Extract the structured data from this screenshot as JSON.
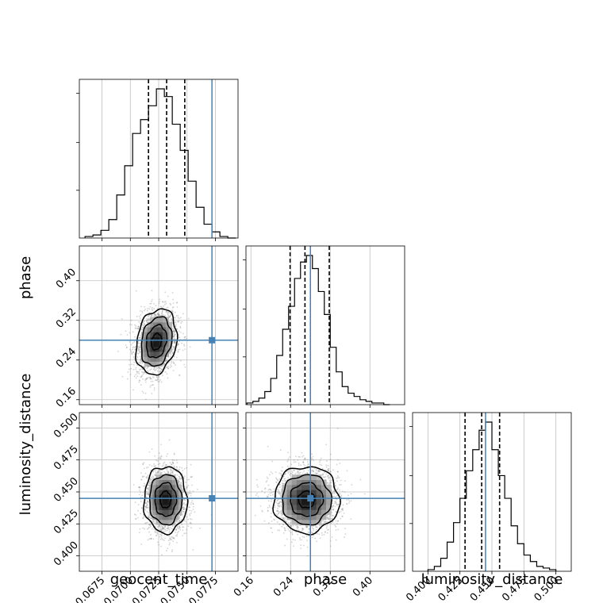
{
  "colors": {
    "truth": "#4682b4",
    "hist": "#000000",
    "grid": "#c0c0c0",
    "points": "#808080"
  },
  "chart_data": {
    "type": "corner",
    "parameters": [
      "geocent_time",
      "phase",
      "luminosity_distance"
    ],
    "truths": {
      "geocent_time": 0.0772,
      "phase": 0.28,
      "luminosity_distance": 0.445
    },
    "grid": true,
    "axes": {
      "geocent_time": {
        "label": "geocent_time",
        "range": [
          0.0655,
          0.0795
        ],
        "ticks": [
          0.0675,
          0.07,
          0.0725,
          0.075,
          0.0775
        ],
        "tick_labels": [
          "0.0675",
          "0.0700",
          "0.0725",
          "0.0750",
          "0.0775"
        ]
      },
      "phase": {
        "label": "phase",
        "range": [
          0.15,
          0.47
        ],
        "ticks": [
          0.16,
          0.24,
          0.32,
          0.4
        ],
        "tick_labels": [
          "0.16",
          "0.24",
          "0.32",
          "0.40"
        ]
      },
      "luminosity_distance": {
        "label": "luminosity_distance",
        "range": [
          0.388,
          0.512
        ],
        "ticks": [
          0.4,
          0.425,
          0.45,
          0.475,
          0.5
        ],
        "tick_labels": [
          "0.400",
          "0.425",
          "0.450",
          "0.475",
          "0.500"
        ]
      }
    },
    "histograms": {
      "geocent_time": {
        "edges": [
          0.066,
          0.0667,
          0.0674,
          0.0681,
          0.0688,
          0.0695,
          0.0702,
          0.0709,
          0.0716,
          0.0723,
          0.073,
          0.0737,
          0.0744,
          0.0751,
          0.0758,
          0.0765,
          0.0772,
          0.0779,
          0.0786,
          0.0793
        ],
        "counts": [
          1,
          2,
          5,
          12,
          28,
          47,
          68,
          77,
          86,
          97,
          92,
          74,
          57,
          37,
          20,
          9,
          4,
          1,
          0
        ],
        "quantiles": [
          0.0716,
          0.0732,
          0.0748
        ]
      },
      "phase": {
        "edges": [
          0.152,
          0.164,
          0.176,
          0.188,
          0.2,
          0.212,
          0.224,
          0.236,
          0.248,
          0.26,
          0.272,
          0.284,
          0.296,
          0.308,
          0.32,
          0.332,
          0.344,
          0.356,
          0.368,
          0.38,
          0.392,
          0.404,
          0.416,
          0.428,
          0.44
        ],
        "counts": [
          1,
          2,
          4,
          8,
          16,
          30,
          46,
          60,
          77,
          87,
          91,
          83,
          69,
          55,
          35,
          20,
          11,
          7,
          5,
          3,
          2,
          1,
          1,
          0
        ],
        "quantiles": [
          0.239,
          0.269,
          0.318
        ]
      },
      "luminosity_distance": {
        "edges": [
          0.4,
          0.405,
          0.41,
          0.415,
          0.42,
          0.425,
          0.43,
          0.435,
          0.44,
          0.445,
          0.45,
          0.455,
          0.46,
          0.465,
          0.47,
          0.475,
          0.48,
          0.485,
          0.49,
          0.495,
          0.5
        ],
        "counts": [
          1,
          3,
          8,
          18,
          30,
          45,
          62,
          75,
          87,
          92,
          75,
          59,
          45,
          28,
          17,
          10,
          6,
          3,
          2,
          1
        ],
        "quantiles": [
          0.429,
          0.442,
          0.456
        ]
      }
    },
    "contours_2d": [
      {
        "x": "geocent_time",
        "y": "phase",
        "center": [
          0.0723,
          0.277
        ],
        "sigma": [
          0.0009,
          0.033
        ],
        "rho": 0.2,
        "levels": [
          0.5,
          1.0,
          1.5,
          2.0
        ]
      },
      {
        "x": "geocent_time",
        "y": "luminosity_distance",
        "center": [
          0.0731,
          0.444
        ],
        "sigma": [
          0.00095,
          0.013
        ],
        "rho": 0.0,
        "levels": [
          0.5,
          1.0,
          1.5,
          2.0
        ]
      },
      {
        "x": "phase",
        "y": "luminosity_distance",
        "center": [
          0.272,
          0.444
        ],
        "sigma": [
          0.033,
          0.013
        ],
        "rho": 0.0,
        "levels": [
          0.5,
          1.0,
          1.5,
          2.0
        ]
      }
    ]
  }
}
